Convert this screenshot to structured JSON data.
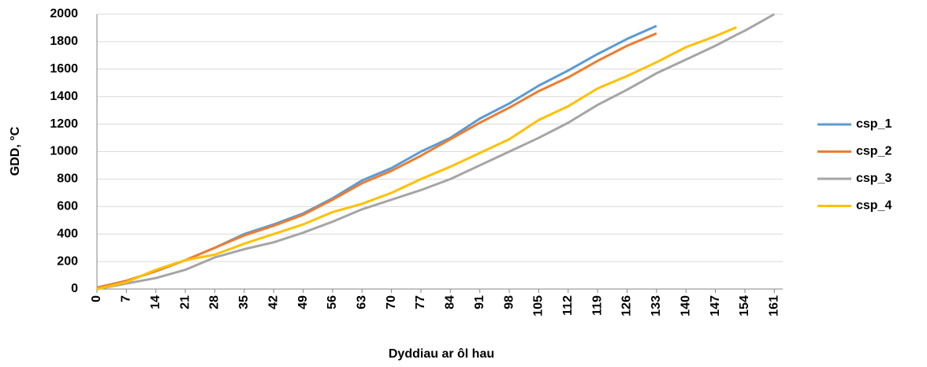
{
  "chart_data": {
    "type": "line",
    "x_label": "Dyddiau ar ôl hau",
    "y_label": "GDD, °C",
    "x": [
      0,
      7,
      14,
      21,
      28,
      35,
      42,
      49,
      56,
      63,
      70,
      77,
      84,
      91,
      98,
      105,
      112,
      119,
      126,
      133,
      140,
      147,
      152,
      154,
      161
    ],
    "series": [
      {
        "name": "csp_1",
        "color": "#5b9bd5",
        "values": [
          10,
          60,
          130,
          210,
          300,
          400,
          470,
          550,
          660,
          790,
          880,
          1000,
          1100,
          1240,
          1350,
          1480,
          1590,
          1710,
          1820,
          1915,
          null,
          null,
          null,
          null,
          null
        ]
      },
      {
        "name": "csp_2",
        "color": "#ed7d31",
        "values": [
          10,
          60,
          130,
          210,
          300,
          390,
          460,
          540,
          650,
          770,
          860,
          970,
          1090,
          1210,
          1320,
          1440,
          1540,
          1660,
          1770,
          1860,
          null,
          null,
          null,
          null,
          null
        ]
      },
      {
        "name": "csp_3",
        "color": "#a5a5a5",
        "values": [
          0,
          40,
          80,
          140,
          230,
          290,
          340,
          410,
          490,
          580,
          650,
          720,
          800,
          900,
          1000,
          1100,
          1210,
          1340,
          1450,
          1570,
          1670,
          1770,
          1850,
          1880,
          2000
        ]
      },
      {
        "name": "csp_4",
        "color": "#ffc000",
        "values": [
          0,
          50,
          140,
          210,
          250,
          330,
          400,
          470,
          560,
          620,
          700,
          800,
          890,
          990,
          1090,
          1230,
          1330,
          1460,
          1550,
          1650,
          1760,
          1840,
          1905,
          null,
          null
        ]
      }
    ],
    "xlim": [
      0,
      163
    ],
    "xticks": [
      0,
      7,
      14,
      21,
      28,
      35,
      42,
      49,
      56,
      63,
      70,
      77,
      84,
      91,
      98,
      105,
      112,
      119,
      126,
      133,
      140,
      147,
      154,
      161
    ],
    "ylim": [
      0,
      2000
    ],
    "yticks": [
      0,
      200,
      400,
      600,
      800,
      1000,
      1200,
      1400,
      1600,
      1800,
      2000
    ],
    "grid": true,
    "legend": "right"
  }
}
